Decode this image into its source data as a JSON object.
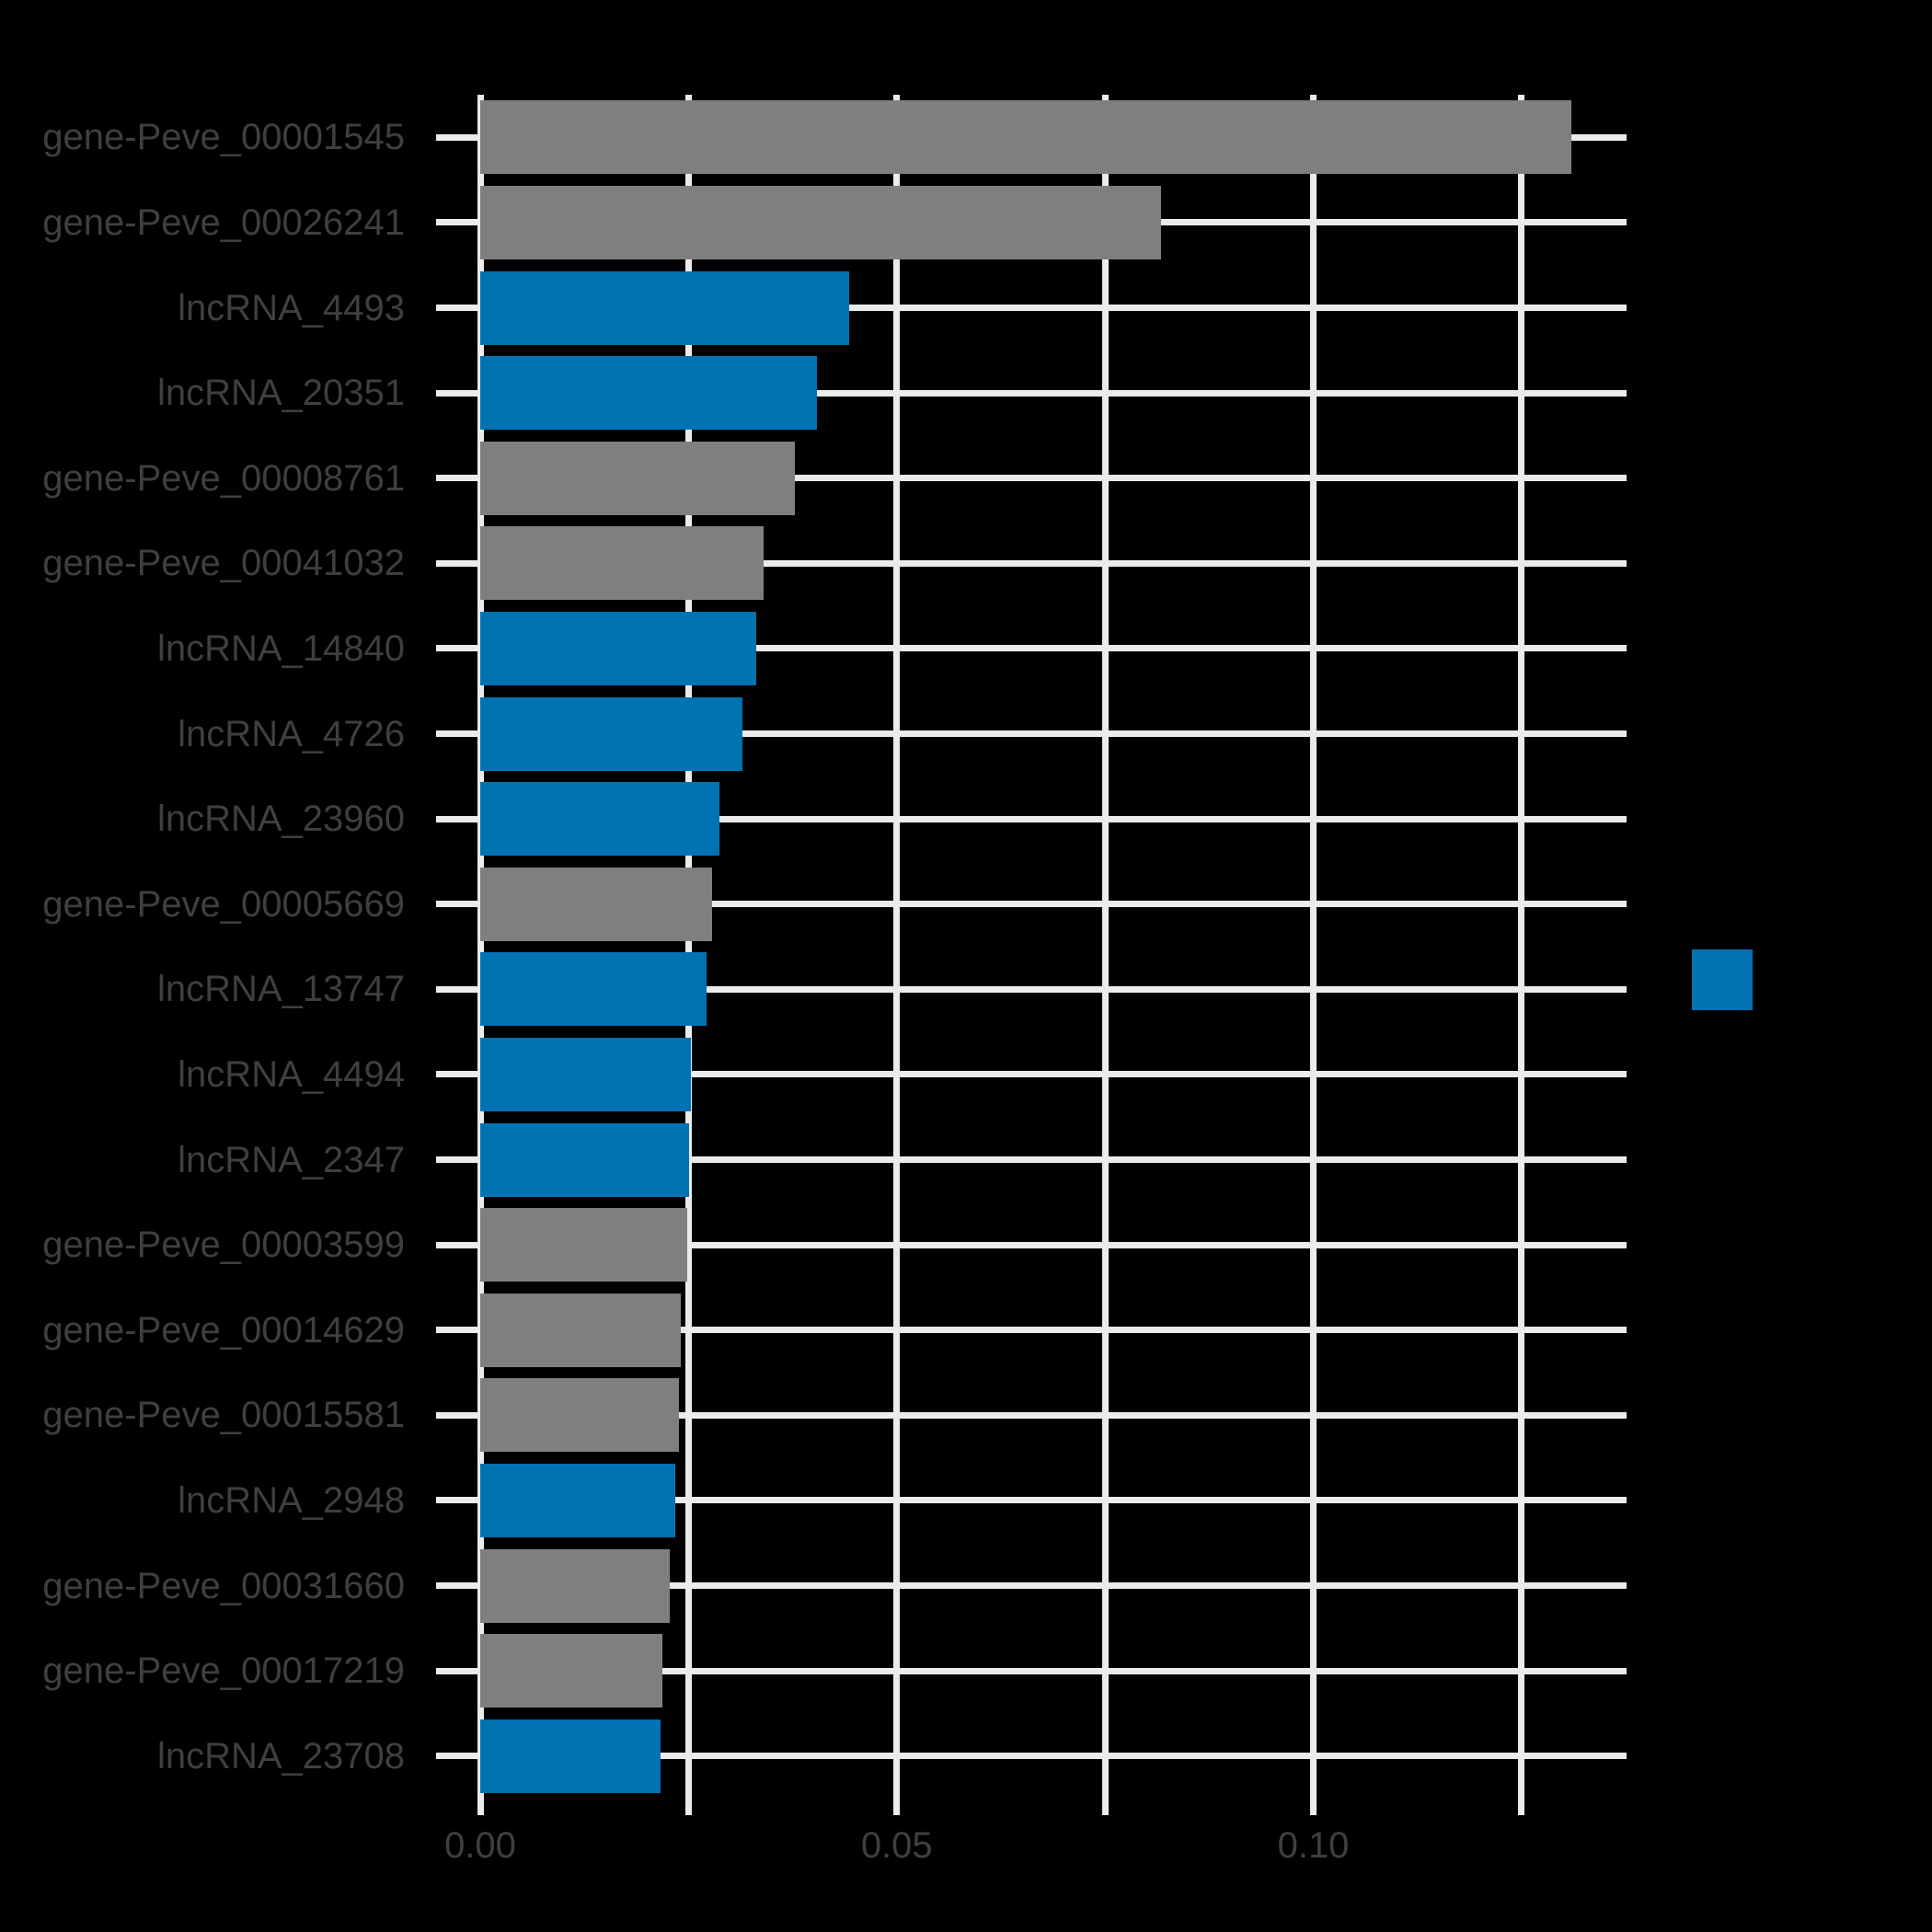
{
  "figure": {
    "background_color": "#000000",
    "grid_color": "#EBEBEB",
    "tick_label_color": "#3F3F3F"
  },
  "chart_data": {
    "type": "bar",
    "orientation": "horizontal",
    "title": "",
    "xlabel": "",
    "ylabel": "",
    "grid": "on",
    "categories": [
      "gene-Peve_00001545",
      "gene-Peve_00026241",
      "lncRNA_4493",
      "lncRNA_20351",
      "gene-Peve_00008761",
      "gene-Peve_00041032",
      "lncRNA_14840",
      "lncRNA_4726",
      "lncRNA_23960",
      "gene-Peve_00005669",
      "lncRNA_13747",
      "lncRNA_4494",
      "lncRNA_2347",
      "gene-Peve_00003599",
      "gene-Peve_00014629",
      "gene-Peve_00015581",
      "lncRNA_2948",
      "gene-Peve_00031660",
      "gene-Peve_00017219",
      "lncRNA_23708"
    ],
    "values": [
      0.131,
      0.0817,
      0.0443,
      0.0404,
      0.0378,
      0.034,
      0.0331,
      0.0315,
      0.0287,
      0.0278,
      0.0272,
      0.0253,
      0.0251,
      0.0248,
      0.0241,
      0.0238,
      0.0234,
      0.0227,
      0.0219,
      0.0217
    ],
    "bar_groups": [
      "gene",
      "gene",
      "lncRNA",
      "lncRNA",
      "gene",
      "gene",
      "lncRNA",
      "lncRNA",
      "lncRNA",
      "gene",
      "lncRNA",
      "lncRNA",
      "lncRNA",
      "gene",
      "gene",
      "gene",
      "lncRNA",
      "gene",
      "gene",
      "lncRNA"
    ],
    "group_colors": {
      "gene": "#7F7F7F",
      "lncRNA": "#0173B2"
    },
    "xlim": [
      0,
      0.1376
    ],
    "x_gridline_values": [
      0,
      0.025,
      0.05,
      0.075,
      0.1,
      0.125
    ],
    "x_major_ticks": [
      {
        "value": 0.0,
        "label": "0.00"
      },
      {
        "value": 0.05,
        "label": "0.05"
      },
      {
        "value": 0.1,
        "label": "0.10"
      }
    ],
    "legend": {
      "position": "right",
      "swatch_color": "#0173B2",
      "label": ""
    }
  }
}
